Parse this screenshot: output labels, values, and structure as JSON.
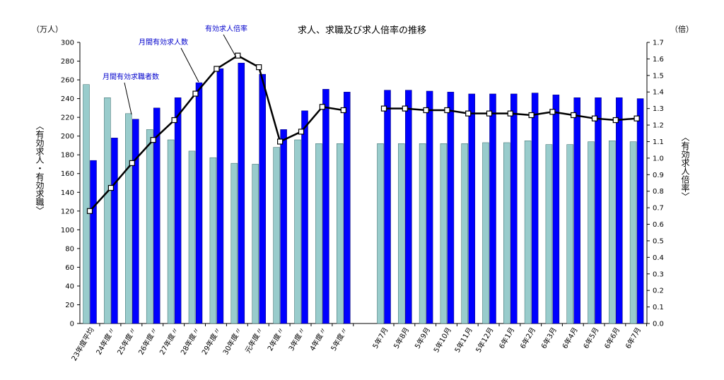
{
  "chart_data": {
    "type": "bar",
    "title": "求人、求職及び求人倍率の推移",
    "left_unit": "（万人）",
    "right_unit": "（倍）",
    "ylabel_left": "〈有効求人・有効求職〉",
    "ylabel_right": "〈有効求人倍率〉",
    "ylim_left": [
      0,
      300
    ],
    "ylim_right": [
      0,
      1.7
    ],
    "yticks_left": [
      "0",
      "20",
      "40",
      "60",
      "80",
      "100",
      "120",
      "140",
      "160",
      "180",
      "200",
      "220",
      "240",
      "260",
      "280",
      "300"
    ],
    "yticks_right": [
      "0.0",
      "0.1",
      "0.2",
      "0.3",
      "0.4",
      "0.5",
      "0.6",
      "0.7",
      "0.8",
      "0.9",
      "1.0",
      "1.1",
      "1.2",
      "1.3",
      "1.4",
      "1.5",
      "1.6",
      "1.7"
    ],
    "categories": [
      "23年度平均",
      "24年度〃",
      "25年度〃",
      "26年度〃",
      "27年度〃",
      "28年度〃",
      "29年度〃",
      "30年度〃",
      "元年度〃",
      "2年度〃",
      "3年度〃",
      "4年度〃",
      "5年度〃",
      "5年7月",
      "5年8月",
      "5年9月",
      "5年10月",
      "5年11月",
      "5年12月",
      "6年1月",
      "6年2月",
      "6年3月",
      "6年4月",
      "6年5月",
      "6年6月",
      "6年7月"
    ],
    "series": [
      {
        "name": "月間有効求職者数",
        "axis": "left",
        "color": "#99cccc",
        "values": [
          255,
          241,
          224,
          207,
          196,
          184,
          177,
          171,
          170,
          188,
          196,
          192,
          192,
          192,
          192,
          192,
          192,
          192,
          193,
          193,
          195,
          191,
          191,
          194,
          195,
          194
        ]
      },
      {
        "name": "月間有効求人数",
        "axis": "left",
        "color": "#0000ff",
        "values": [
          174,
          198,
          218,
          230,
          241,
          257,
          272,
          278,
          266,
          207,
          227,
          250,
          247,
          249,
          249,
          248,
          247,
          245,
          245,
          245,
          246,
          244,
          241,
          241,
          241,
          240
        ]
      },
      {
        "name": "有効求人倍率",
        "axis": "right",
        "type": "line",
        "color": "#000000",
        "values": [
          0.68,
          0.82,
          0.97,
          1.11,
          1.23,
          1.39,
          1.54,
          1.62,
          1.55,
          1.1,
          1.16,
          1.31,
          1.29,
          1.3,
          1.3,
          1.29,
          1.29,
          1.27,
          1.27,
          1.27,
          1.26,
          1.28,
          1.26,
          1.24,
          1.23,
          1.24
        ]
      }
    ],
    "grid": false,
    "legend": "annotations"
  }
}
